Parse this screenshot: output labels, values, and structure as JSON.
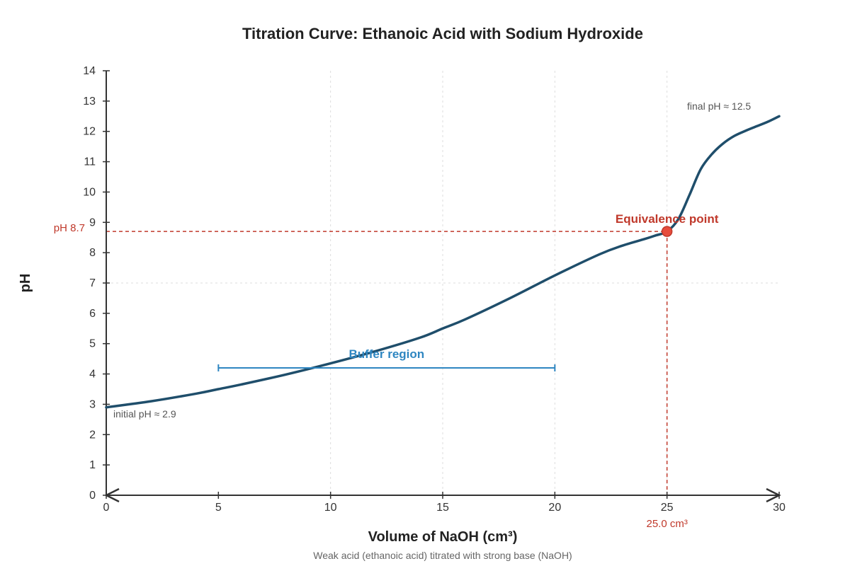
{
  "chart_data": {
    "type": "line",
    "title": "Titration Curve: Ethanoic Acid with Sodium Hydroxide",
    "xlabel": "Volume of NaOH (cm³)",
    "ylabel": "pH",
    "caption": "Weak acid (ethanoic acid) titrated with strong base (NaOH)",
    "xlim": [
      0,
      30
    ],
    "ylim": [
      0,
      14
    ],
    "x_ticks": [
      "0",
      "5",
      "10",
      "15",
      "20",
      "25",
      "30"
    ],
    "y_ticks": [
      "0",
      "1",
      "2",
      "3",
      "4",
      "5",
      "6",
      "7",
      "8",
      "9",
      "10",
      "11",
      "12",
      "13",
      "14"
    ],
    "grid": {
      "vertical_at": [
        10,
        15,
        20,
        25
      ],
      "horizontal_at": [
        7
      ]
    },
    "series": [
      {
        "x": [
          0,
          2,
          4,
          5,
          6,
          8,
          10,
          12,
          14,
          15,
          16,
          18,
          20,
          22,
          23,
          24,
          24.5,
          25,
          25.5,
          26,
          26.5,
          27,
          27.5,
          28,
          28.5,
          29,
          29.5,
          30
        ],
        "y": [
          2.9,
          3.1,
          3.35,
          3.5,
          3.65,
          3.98,
          4.35,
          4.75,
          5.2,
          5.5,
          5.8,
          6.5,
          7.25,
          7.95,
          8.23,
          8.45,
          8.57,
          8.7,
          9.1,
          9.9,
          10.75,
          11.25,
          11.6,
          11.85,
          12.02,
          12.17,
          12.32,
          12.5
        ]
      }
    ],
    "equivalence_point": {
      "x": 25,
      "y": 8.7,
      "label": "Equivalence point",
      "x_label": "25.0 cm³",
      "y_label": "pH 8.7"
    },
    "buffer_region": {
      "x_start": 5,
      "x_end": 20,
      "y": 4.2,
      "label": "Buffer region"
    },
    "annotations": {
      "initial": "initial pH ≈ 2.9",
      "final": "final pH ≈ 12.5"
    },
    "colors": {
      "curve": "#1f4e6b",
      "equivalence": "#c0392b",
      "point_fill": "#e74c3c",
      "buffer": "#2e86c1",
      "axis": "#333333",
      "grid": "#dddddd"
    }
  }
}
